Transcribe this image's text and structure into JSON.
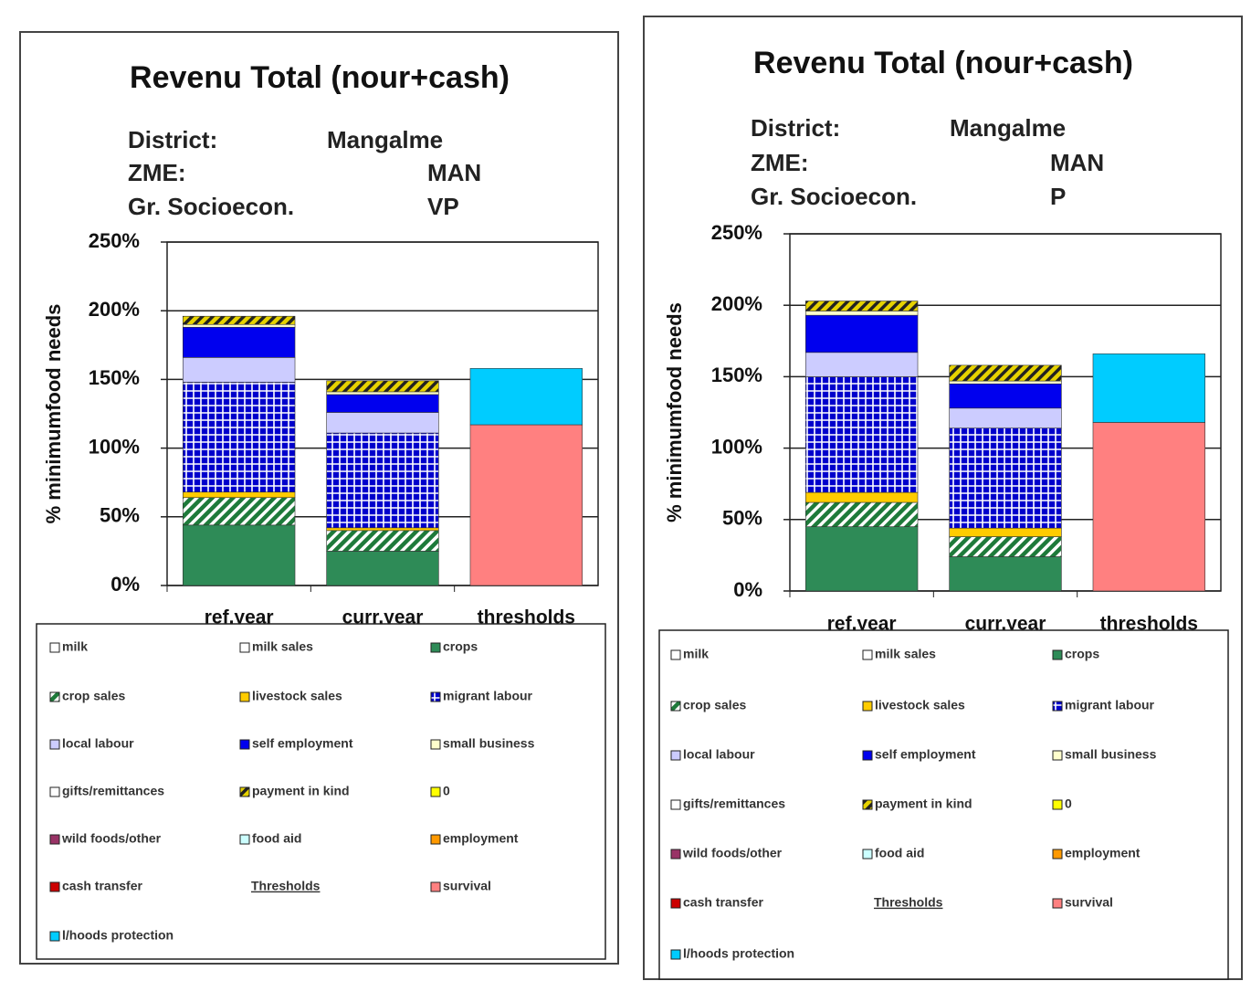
{
  "chart_data": [
    {
      "type": "bar",
      "stacked": true,
      "title": "Revenu Total (nour+cash)",
      "info": [
        {
          "label": "District:",
          "value": "Mangalme"
        },
        {
          "label": "ZME:",
          "value": "MAN"
        },
        {
          "label": "Gr. Socioecon.",
          "value": "VP"
        }
      ],
      "ylabel": "% minimumfood needs",
      "categories": [
        "ref.year",
        "curr.year",
        "thresholds"
      ],
      "ylim": [
        0,
        250
      ],
      "yticks": [
        {
          "value": 0,
          "label": "0%"
        },
        {
          "value": 50,
          "label": "50%"
        },
        {
          "value": 100,
          "label": "100%"
        },
        {
          "value": 150,
          "label": "150%"
        },
        {
          "value": 200,
          "label": "200%"
        },
        {
          "value": 250,
          "label": "250%"
        }
      ],
      "grid": true,
      "legend_heading": "Thresholds",
      "series": [
        {
          "name": "milk",
          "color": "#ffffff",
          "values": [
            0,
            0,
            0
          ]
        },
        {
          "name": "milk sales",
          "color": "#ffffff",
          "values": [
            0,
            0,
            0
          ]
        },
        {
          "name": "crops",
          "color": "#2e8b57",
          "values": [
            44,
            25,
            0
          ]
        },
        {
          "name": "crop sales",
          "color": "#1e7a3a",
          "pattern": "diagonal",
          "values": [
            20,
            15,
            0
          ]
        },
        {
          "name": "livestock sales",
          "color": "#ffcc00",
          "values": [
            4,
            2,
            0
          ]
        },
        {
          "name": "migrant labour",
          "color": "#0000cc",
          "pattern": "grid",
          "values": [
            80,
            69,
            0
          ]
        },
        {
          "name": "local labour",
          "color": "#ccccff",
          "values": [
            18,
            15,
            0
          ]
        },
        {
          "name": "self employment",
          "color": "#0000ee",
          "values": [
            22,
            13,
            0
          ]
        },
        {
          "name": "small business",
          "color": "#ffffcc",
          "values": [
            2,
            2,
            0
          ]
        },
        {
          "name": "gifts/remittances",
          "color": "#ffffff",
          "values": [
            0,
            0,
            0
          ]
        },
        {
          "name": "payment in kind",
          "color": "#e6d200",
          "pattern": "diagonal",
          "values": [
            6,
            8,
            0
          ]
        },
        {
          "name": "0",
          "color": "#ffff00",
          "values": [
            0,
            0,
            0
          ]
        },
        {
          "name": "wild foods/other",
          "color": "#993366",
          "values": [
            0,
            0,
            0
          ]
        },
        {
          "name": "food aid",
          "color": "#ccffff",
          "values": [
            0,
            0,
            0
          ]
        },
        {
          "name": "employment",
          "color": "#ff9900",
          "values": [
            0,
            0,
            0
          ]
        },
        {
          "name": "cash transfer",
          "color": "#cc0000",
          "values": [
            0,
            0,
            0
          ]
        },
        {
          "name": "survival",
          "color": "#ff8080",
          "values": [
            0,
            0,
            117
          ]
        },
        {
          "name": "l/hoods protection",
          "color": "#00ccff",
          "values": [
            0,
            0,
            41
          ]
        }
      ]
    },
    {
      "type": "bar",
      "stacked": true,
      "title": "Revenu Total (nour+cash)",
      "info": [
        {
          "label": "District:",
          "value": "Mangalme"
        },
        {
          "label": "ZME:",
          "value": "MAN"
        },
        {
          "label": "Gr. Socioecon.",
          "value": "P"
        }
      ],
      "ylabel": "% minimumfood needs",
      "categories": [
        "ref.year",
        "curr.year",
        "thresholds"
      ],
      "ylim": [
        0,
        250
      ],
      "yticks": [
        {
          "value": 0,
          "label": "0%"
        },
        {
          "value": 50,
          "label": "50%"
        },
        {
          "value": 100,
          "label": "100%"
        },
        {
          "value": 150,
          "label": "150%"
        },
        {
          "value": 200,
          "label": "200%"
        },
        {
          "value": 250,
          "label": "250%"
        }
      ],
      "grid": true,
      "legend_heading": "Thresholds",
      "series": [
        {
          "name": "milk",
          "color": "#ffffff",
          "values": [
            0,
            0,
            0
          ]
        },
        {
          "name": "milk sales",
          "color": "#ffffff",
          "values": [
            0,
            0,
            0
          ]
        },
        {
          "name": "crops",
          "color": "#2e8b57",
          "values": [
            45,
            24,
            0
          ]
        },
        {
          "name": "crop sales",
          "color": "#1e7a3a",
          "pattern": "diagonal",
          "values": [
            17,
            14,
            0
          ]
        },
        {
          "name": "livestock sales",
          "color": "#ffcc00",
          "values": [
            7,
            6,
            0
          ]
        },
        {
          "name": "migrant labour",
          "color": "#0000cc",
          "pattern": "grid",
          "values": [
            81,
            70,
            0
          ]
        },
        {
          "name": "local labour",
          "color": "#ccccff",
          "values": [
            17,
            14,
            0
          ]
        },
        {
          "name": "self employment",
          "color": "#0000ee",
          "values": [
            26,
            17,
            0
          ]
        },
        {
          "name": "small business",
          "color": "#ffffcc",
          "values": [
            3,
            2,
            0
          ]
        },
        {
          "name": "gifts/remittances",
          "color": "#ffffff",
          "values": [
            0,
            0,
            0
          ]
        },
        {
          "name": "payment in kind",
          "color": "#e6d200",
          "pattern": "diagonal",
          "values": [
            7,
            11,
            0
          ]
        },
        {
          "name": "0",
          "color": "#ffff00",
          "values": [
            0,
            0,
            0
          ]
        },
        {
          "name": "wild foods/other",
          "color": "#993366",
          "values": [
            0,
            0,
            0
          ]
        },
        {
          "name": "food aid",
          "color": "#ccffff",
          "values": [
            0,
            0,
            0
          ]
        },
        {
          "name": "employment",
          "color": "#ff9900",
          "values": [
            0,
            0,
            0
          ]
        },
        {
          "name": "cash transfer",
          "color": "#cc0000",
          "values": [
            0,
            0,
            0
          ]
        },
        {
          "name": "survival",
          "color": "#ff8080",
          "values": [
            0,
            0,
            118
          ]
        },
        {
          "name": "l/hoods protection",
          "color": "#00ccff",
          "values": [
            0,
            0,
            48
          ]
        }
      ]
    }
  ]
}
